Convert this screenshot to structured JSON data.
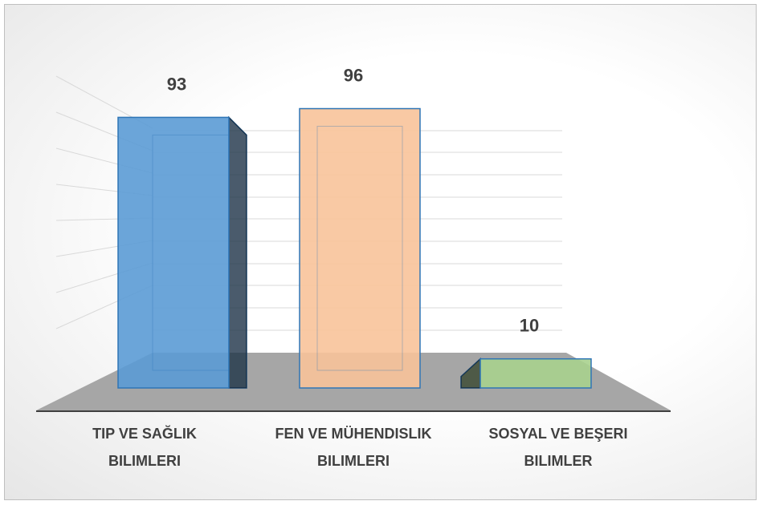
{
  "chart_data": {
    "type": "bar3d",
    "categories": [
      "TIP VE SAĞLIK BILIMLERI",
      "FEN VE MÜHENDISLIK BILIMLERI",
      "SOSYAL VE BEŞERI BILIMLER"
    ],
    "values": [
      93,
      96,
      10
    ],
    "colors": [
      "#5b9bd5",
      "#f8c39a",
      "#a9d18e"
    ],
    "ylim": [
      0,
      100
    ]
  }
}
